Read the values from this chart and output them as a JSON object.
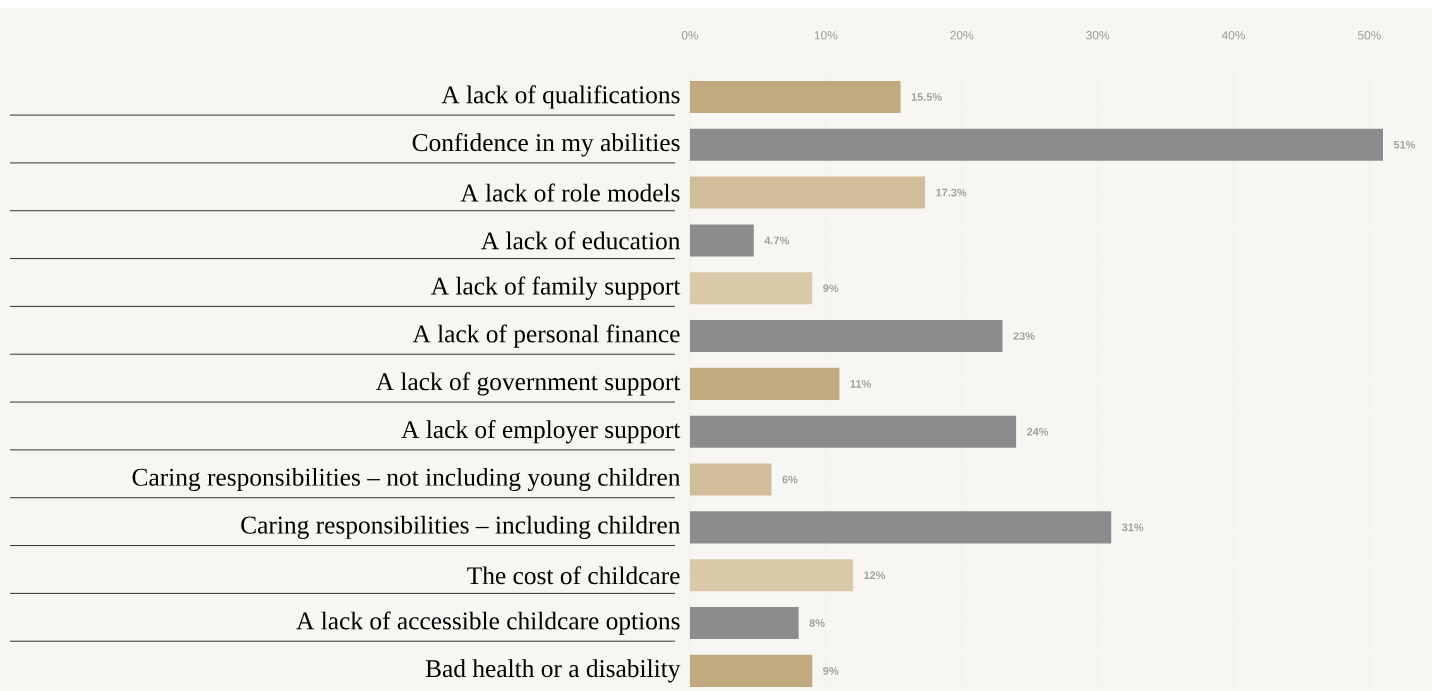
{
  "chart_data": {
    "type": "bar",
    "orientation": "horizontal",
    "categories": [
      "A lack of qualifications",
      "Confidence in my abilities",
      "A lack of role models",
      "A lack of education",
      "A lack of family support",
      "A lack of personal finance",
      "A lack of government support",
      "A lack of employer support",
      "Caring responsibilities – not including young children",
      "Caring responsibilities – including children",
      "The cost of childcare",
      "A lack of accessible childcare options",
      "Bad health or a disability"
    ],
    "values": [
      15.5,
      51,
      17.3,
      4.7,
      9,
      23,
      11,
      24,
      6,
      31,
      12,
      8,
      9
    ],
    "value_labels": [
      "15.5%",
      "51%",
      "17.3%",
      "4.7%",
      "9%",
      "23%",
      "11%",
      "24%",
      "6%",
      "31%",
      "12%",
      "8%",
      "9%"
    ],
    "colors": [
      "#c1aa7e",
      "#8b8c8e",
      "#cfbe99",
      "#8b8c8e",
      "#d9c9a9",
      "#8b8c8e",
      "#c1aa7e",
      "#8b8c8e",
      "#cfbe99",
      "#8b8c8e",
      "#d9c9a9",
      "#8b8c8e",
      "#c1aa7e"
    ],
    "xlim": [
      0,
      54.6
    ],
    "xticks": [
      {
        "value": 0,
        "label": "0%"
      },
      {
        "value": 10,
        "label": "10%"
      },
      {
        "value": 20,
        "label": "20%"
      },
      {
        "value": 30,
        "label": "30%"
      },
      {
        "value": 40,
        "label": "40%"
      },
      {
        "value": 50,
        "label": "50%"
      }
    ],
    "grid": "x"
  }
}
